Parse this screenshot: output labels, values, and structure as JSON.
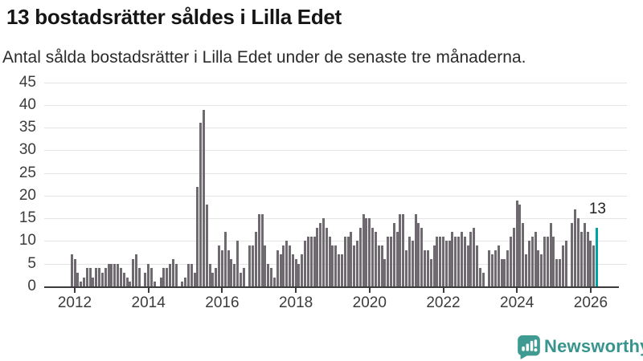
{
  "header": {
    "title": "13 bostadsrätter såldes i Lilla Edet",
    "subtitle": "Antal sålda bostadsrätter i Lilla Edet under de senaste tre månaderna."
  },
  "annotation": {
    "label": "13"
  },
  "footer": {
    "brand": "Newsworthy",
    "brand_color": "#38948c",
    "logo_icon": "bar-chart-speech-bubble-icon"
  },
  "chart_data": {
    "type": "bar",
    "title": "13 bostadsrätter såldes i Lilla Edet",
    "subtitle": "Antal sålda bostadsrätter i Lilla Edet under de senaste tre månaderna.",
    "xlabel": "",
    "ylabel": "",
    "ylim": [
      0,
      45
    ],
    "grid": true,
    "y_ticks": [
      0,
      5,
      10,
      15,
      20,
      25,
      30,
      35,
      40,
      45
    ],
    "x_ticks": [
      "2012",
      "2014",
      "2016",
      "2018",
      "2020",
      "2022",
      "2024",
      "2026"
    ],
    "x_unit": "month",
    "start_offset_months_before_first_tick": 1,
    "values": [
      7,
      6,
      3,
      1,
      2,
      4,
      4,
      2,
      4,
      4,
      3,
      4,
      5,
      5,
      5,
      5,
      4,
      3,
      2,
      1,
      6,
      7,
      4,
      0,
      3,
      5,
      4,
      1,
      0,
      2,
      4,
      4,
      5,
      6,
      5,
      0,
      1,
      2,
      5,
      5,
      3,
      22,
      36,
      39,
      18,
      5,
      3,
      4,
      9,
      8,
      12,
      8,
      6,
      5,
      10,
      3,
      4,
      0,
      9,
      9,
      12,
      16,
      16,
      9,
      5,
      4,
      2,
      8,
      7,
      9,
      10,
      9,
      7,
      6,
      5,
      7,
      10,
      11,
      11,
      11,
      13,
      14,
      15,
      13,
      11,
      9,
      9,
      7,
      7,
      11,
      11,
      12,
      9,
      10,
      13,
      16,
      15,
      15,
      13,
      12,
      9,
      9,
      6,
      11,
      11,
      14,
      12,
      16,
      16,
      8,
      11,
      10,
      16,
      14,
      13,
      8,
      8,
      6,
      9,
      11,
      11,
      11,
      10,
      10,
      12,
      11,
      11,
      12,
      11,
      9,
      12,
      13,
      9,
      4,
      3,
      0,
      8,
      7,
      8,
      9,
      6,
      6,
      8,
      11,
      13,
      19,
      18,
      14,
      7,
      10,
      11,
      12,
      8,
      7,
      11,
      11,
      14,
      11,
      6,
      6,
      9,
      10,
      0,
      14,
      17,
      15,
      12,
      14,
      12,
      10,
      9,
      13
    ],
    "highlight": {
      "position": "last",
      "value": 13,
      "label": "13"
    },
    "legend": null,
    "colors": {
      "bar": "#6e6a6f",
      "highlight": "#00a2a4",
      "axis": "#3c3c3c",
      "grid": "#e4e4e4",
      "text": "#3c3c3c"
    }
  }
}
